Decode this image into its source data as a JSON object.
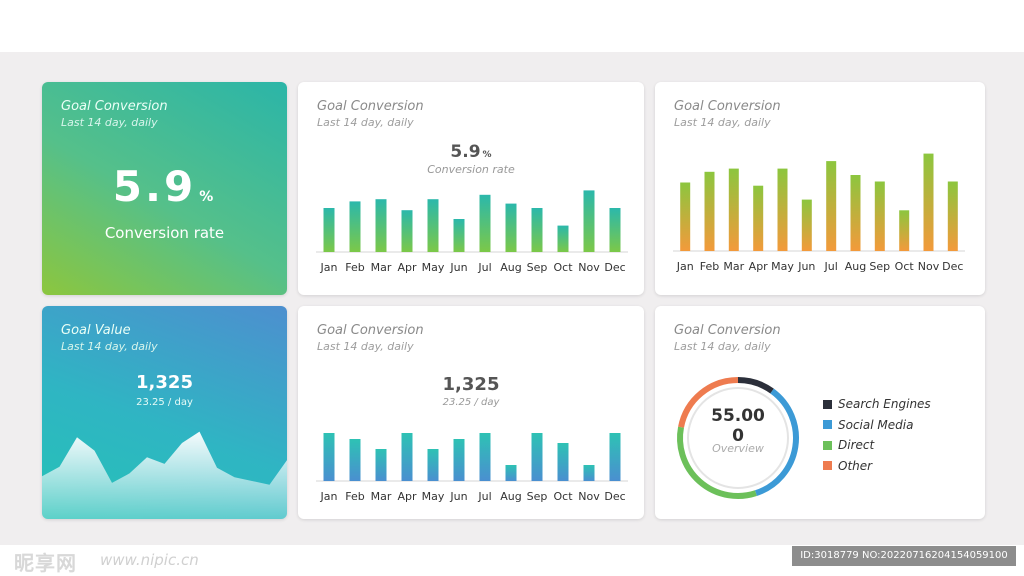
{
  "cards": {
    "kpi_conversion": {
      "title": "Goal Conversion",
      "subtitle": "Last 14 day, daily",
      "value": "5.9",
      "unit": "%",
      "label": "Conversion rate"
    },
    "bar_conversion": {
      "title": "Goal Conversion",
      "subtitle": "Last 14 day, daily",
      "value": "5.9",
      "unit": "%",
      "label": "Conversion rate"
    },
    "bar_orange": {
      "title": "Goal Conversion",
      "subtitle": "Last 14 day, daily"
    },
    "kpi_value": {
      "title": "Goal Value",
      "subtitle": "Last 14 day, daily",
      "value": "1,325",
      "per_day": "23.25 / day"
    },
    "bar_value": {
      "title": "Goal Conversion",
      "subtitle": "Last 14 day, daily",
      "value": "1,325",
      "per_day": "23.25 / day"
    },
    "donut": {
      "title": "Goal Conversion",
      "subtitle": "Last 14 day, daily",
      "center_value_line1": "55.00",
      "center_value_line2": "0",
      "center_label": "Overview"
    }
  },
  "legend": [
    {
      "label": "Search Engines",
      "color": "#2b2f3a"
    },
    {
      "label": "Social Media",
      "color": "#3c9ad6"
    },
    {
      "label": "Direct",
      "color": "#6cc05a"
    },
    {
      "label": "Other",
      "color": "#ee7b4f"
    }
  ],
  "colors": {
    "bar_green_top": "#2bb8ab",
    "bar_green_bottom": "#7cc848",
    "bar_orange_top": "#8cc63e",
    "bar_orange_bottom": "#f39a3b",
    "bar_blue_top": "#2ec2b4",
    "bar_blue_bottom": "#4a8fd0"
  },
  "watermark": {
    "logo": "昵享网",
    "url": "www.nipic.cn",
    "id": "ID:3018779 NO:20220716204154059100"
  },
  "chart_data": [
    {
      "type": "bar",
      "title": "Goal Conversion",
      "categories": [
        "Jan",
        "Feb",
        "Mar",
        "Apr",
        "May",
        "Jun",
        "Jul",
        "Aug",
        "Sep",
        "Oct",
        "Nov",
        "Dec"
      ],
      "values": [
        20,
        23,
        24,
        19,
        24,
        15,
        26,
        22,
        20,
        12,
        28,
        20
      ],
      "ylim": [
        0,
        30
      ]
    },
    {
      "type": "bar",
      "title": "Goal Conversion",
      "categories": [
        "Jan",
        "Feb",
        "Mar",
        "Apr",
        "May",
        "Jun",
        "Jul",
        "Aug",
        "Sep",
        "Oct",
        "Nov",
        "Dec"
      ],
      "values": [
        64,
        74,
        77,
        61,
        77,
        48,
        84,
        71,
        65,
        38,
        91,
        65
      ],
      "ylim": [
        0,
        100
      ]
    },
    {
      "type": "bar",
      "title": "Goal Conversion",
      "categories": [
        "Jan",
        "Feb",
        "Mar",
        "Apr",
        "May",
        "Jun",
        "Jul",
        "Aug",
        "Sep",
        "Oct",
        "Nov",
        "Dec"
      ],
      "values": [
        48,
        42,
        32,
        48,
        32,
        42,
        48,
        16,
        48,
        38,
        16,
        48
      ],
      "ylim": [
        0,
        50
      ]
    },
    {
      "type": "area",
      "title": "Goal Value",
      "x": [
        0,
        1,
        2,
        3,
        4,
        5,
        6,
        7,
        8,
        9,
        10,
        11,
        12,
        13,
        14
      ],
      "values": [
        45,
        55,
        86,
        72,
        38,
        48,
        65,
        58,
        80,
        92,
        54,
        44,
        40,
        36,
        62
      ],
      "ylim": [
        0,
        100
      ]
    },
    {
      "type": "pie",
      "title": "Goal Conversion",
      "labels": [
        "Search Engines",
        "Social Media",
        "Direct",
        "Other"
      ],
      "values": [
        10,
        35,
        33,
        22
      ]
    }
  ]
}
